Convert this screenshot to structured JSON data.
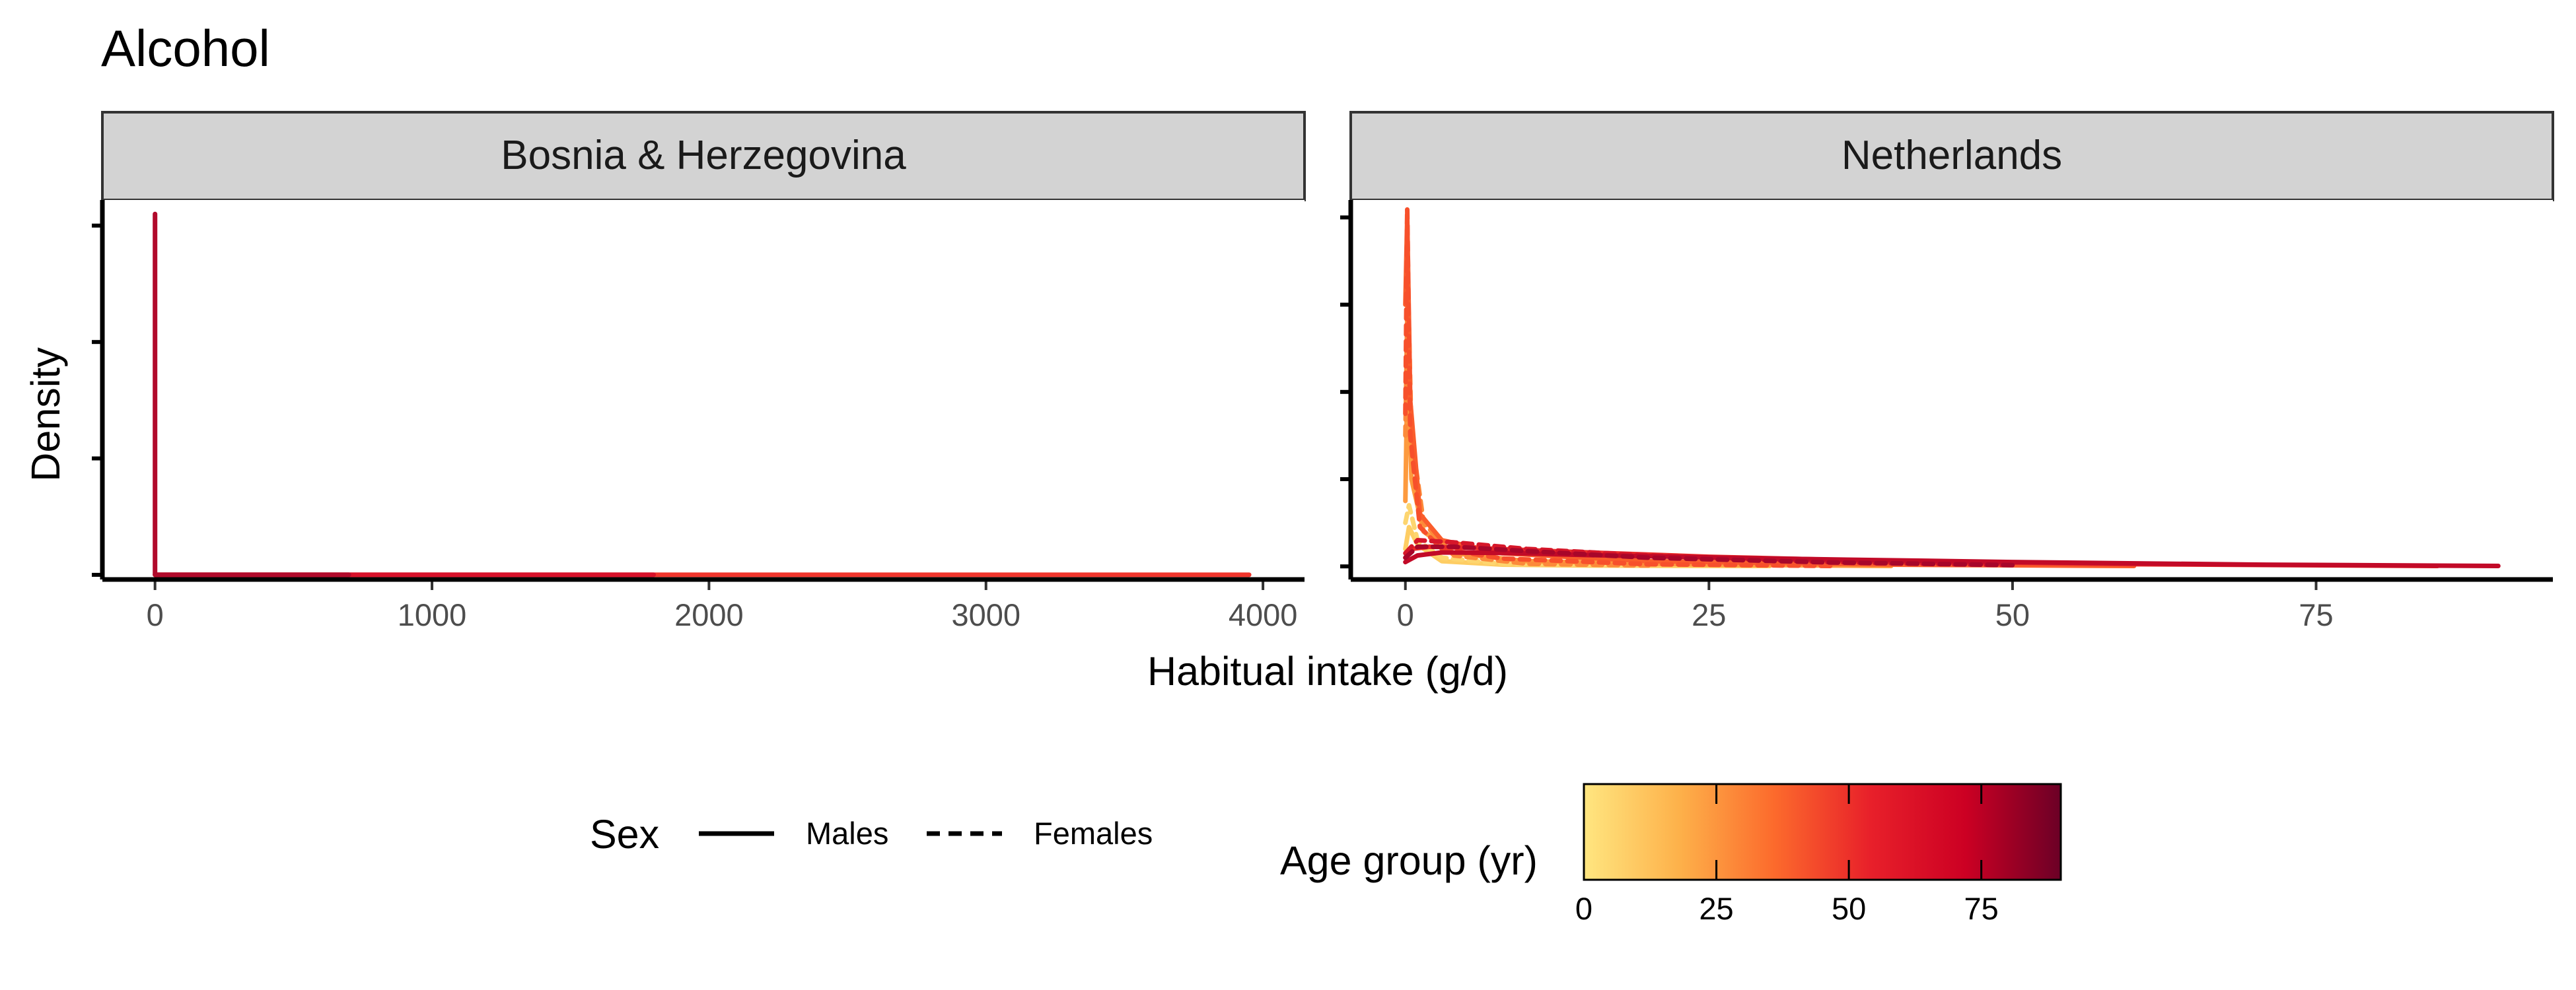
{
  "title": "Alcohol",
  "x_axis_title": "Habitual intake (g/d)",
  "y_axis_title": "Density",
  "legend": {
    "sex_title": "Sex",
    "sex_items": [
      {
        "label": "Males",
        "dash": "solid"
      },
      {
        "label": "Females",
        "dash": "dashed"
      }
    ],
    "age_title": "Age group (yr)",
    "age_ticks": [
      "0",
      "25",
      "50",
      "75"
    ],
    "age_range": [
      0,
      90
    ],
    "gradient_colors": [
      "#ffe680",
      "#fdb14a",
      "#fc6a2c",
      "#e8202a",
      "#cc0023",
      "#6b0026"
    ]
  },
  "chart_data": [
    {
      "type": "line",
      "panel": "Bosnia & Herzegovina",
      "x_ticks": [
        "0",
        "1000",
        "2000",
        "3000",
        "4000"
      ],
      "xlim": [
        -190,
        4150
      ],
      "ylim": [
        -0.0002,
        0.0161
      ],
      "y_ticks": [
        0,
        0.005,
        0.01,
        0.015
      ],
      "series": [
        {
          "sex": "Males",
          "age": 45,
          "color": "#f0352c",
          "points": [
            [
              0,
              0
            ],
            [
              2500,
              0
            ],
            [
              3950,
              0
            ]
          ]
        },
        {
          "sex": "Males",
          "age": 65,
          "color": "#d7112a",
          "points": [
            [
              0,
              0
            ],
            [
              1800,
              0
            ]
          ]
        },
        {
          "sex": "Males",
          "age": 80,
          "color": "#b10a2b",
          "points": [
            [
              0,
              0.0155
            ],
            [
              0,
              0
            ],
            [
              700,
              0
            ]
          ]
        }
      ]
    },
    {
      "type": "line",
      "panel": "Netherlands",
      "x_ticks": [
        "0",
        "25",
        "50",
        "75"
      ],
      "xlim": [
        -4.5,
        94.5
      ],
      "ylim": [
        -0.03,
        0.84
      ],
      "y_ticks": [
        0,
        0.2,
        0.4,
        0.6,
        0.8
      ],
      "series": [
        {
          "sex": "Males",
          "age": 12,
          "color": "#fecd63",
          "points": [
            [
              0,
              0.04
            ],
            [
              0.3,
              0.09
            ],
            [
              1,
              0.05
            ],
            [
              3,
              0.012
            ],
            [
              8,
              0.004
            ],
            [
              15,
              0.002
            ],
            [
              30,
              0.001
            ]
          ]
        },
        {
          "sex": "Females",
          "age": 12,
          "color": "#fdd56f",
          "points": [
            [
              0,
              0.1
            ],
            [
              0.3,
              0.14
            ],
            [
              1,
              0.06
            ],
            [
              3,
              0.02
            ],
            [
              8,
              0.006
            ],
            [
              20,
              0.002
            ]
          ]
        },
        {
          "sex": "Males",
          "age": 25,
          "color": "#fd9a3e",
          "points": [
            [
              0,
              0.15
            ],
            [
              0.2,
              0.5
            ],
            [
              0.5,
              0.2
            ],
            [
              1.5,
              0.08
            ],
            [
              4,
              0.03
            ],
            [
              10,
              0.012
            ],
            [
              25,
              0.004
            ],
            [
              40,
              0.001
            ]
          ]
        },
        {
          "sex": "Females",
          "age": 25,
          "color": "#fc8a3a",
          "points": [
            [
              0,
              0.3
            ],
            [
              0.2,
              0.66
            ],
            [
              0.5,
              0.3
            ],
            [
              1.5,
              0.1
            ],
            [
              4,
              0.025
            ],
            [
              10,
              0.006
            ],
            [
              20,
              0.002
            ]
          ]
        },
        {
          "sex": "Males",
          "age": 40,
          "color": "#fa5d2c",
          "points": [
            [
              0,
              0.6
            ],
            [
              0.15,
              0.8
            ],
            [
              0.4,
              0.38
            ],
            [
              1.2,
              0.12
            ],
            [
              3,
              0.06
            ],
            [
              8,
              0.03
            ],
            [
              20,
              0.012
            ],
            [
              40,
              0.004
            ],
            [
              60,
              0.001
            ]
          ]
        },
        {
          "sex": "Females",
          "age": 40,
          "color": "#f7502b",
          "points": [
            [
              0,
              0.35
            ],
            [
              0.15,
              0.82
            ],
            [
              0.4,
              0.3
            ],
            [
              1.2,
              0.09
            ],
            [
              3,
              0.04
            ],
            [
              8,
              0.018
            ],
            [
              20,
              0.005
            ],
            [
              35,
              0.001
            ]
          ]
        },
        {
          "sex": "Males",
          "age": 55,
          "color": "#ea2d29",
          "points": [
            [
              0,
              0.02
            ],
            [
              0.5,
              0.04
            ],
            [
              2,
              0.045
            ],
            [
              6,
              0.042
            ],
            [
              12,
              0.035
            ],
            [
              25,
              0.022
            ],
            [
              40,
              0.012
            ],
            [
              60,
              0.005
            ],
            [
              85,
              0.001
            ]
          ]
        },
        {
          "sex": "Females",
          "age": 55,
          "color": "#d6172a",
          "points": [
            [
              0,
              0.03
            ],
            [
              1,
              0.06
            ],
            [
              4,
              0.055
            ],
            [
              10,
              0.04
            ],
            [
              20,
              0.025
            ],
            [
              35,
              0.01
            ],
            [
              50,
              0.003
            ]
          ]
        },
        {
          "sex": "Males",
          "age": 70,
          "color": "#c20a28",
          "points": [
            [
              0,
              0.01
            ],
            [
              1,
              0.025
            ],
            [
              3,
              0.032
            ],
            [
              8,
              0.031
            ],
            [
              15,
              0.026
            ],
            [
              30,
              0.018
            ],
            [
              50,
              0.01
            ],
            [
              70,
              0.004
            ],
            [
              90,
              0.001
            ]
          ]
        },
        {
          "sex": "Females",
          "age": 70,
          "color": "#a8062a",
          "points": [
            [
              0,
              0.02
            ],
            [
              1,
              0.045
            ],
            [
              4,
              0.045
            ],
            [
              10,
              0.035
            ],
            [
              20,
              0.02
            ],
            [
              35,
              0.009
            ],
            [
              50,
              0.003
            ]
          ]
        }
      ]
    }
  ]
}
